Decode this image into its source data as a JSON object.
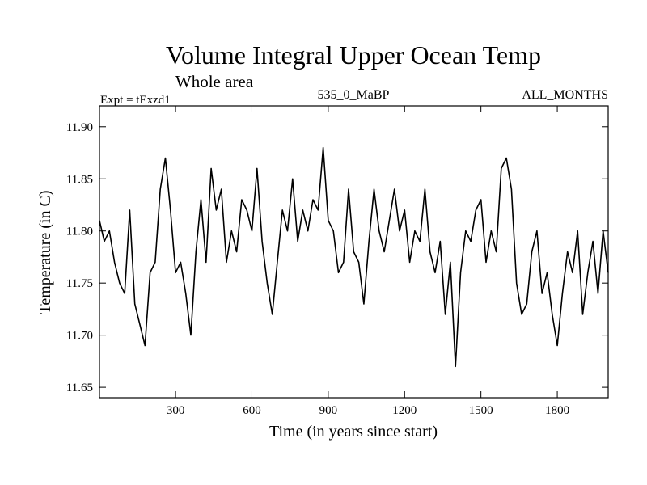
{
  "chart_data": {
    "type": "line",
    "title": "Volume Integral Upper Ocean Temp",
    "subtitle": "Whole area",
    "experiment_label": "Expt = tExzd1",
    "period_label": "535_0_MaBP",
    "months_label": "ALL_MONTHS",
    "xlabel": "Time (in years since start)",
    "ylabel": "Temperature (in C)",
    "xlim": [
      1,
      2000
    ],
    "ylim": [
      11.64,
      11.92
    ],
    "xticks": [
      300,
      600,
      900,
      1200,
      1500,
      1800
    ],
    "xtick_labels": [
      "300",
      "600",
      "900",
      "1200",
      "1500",
      "1800"
    ],
    "yticks": [
      11.65,
      11.7,
      11.75,
      11.8,
      11.85,
      11.9
    ],
    "ytick_labels": [
      "11.65",
      "11.70",
      "11.75",
      "11.80",
      "11.85",
      "11.90"
    ],
    "grid": false,
    "line_color": "#000000",
    "series": [
      {
        "name": "Volume integral upper ocean temperature",
        "x": [
          1,
          20,
          40,
          60,
          80,
          100,
          120,
          140,
          160,
          180,
          200,
          220,
          240,
          260,
          280,
          300,
          320,
          340,
          360,
          380,
          400,
          420,
          440,
          460,
          480,
          500,
          520,
          540,
          560,
          580,
          600,
          620,
          640,
          660,
          680,
          700,
          720,
          740,
          760,
          780,
          800,
          820,
          840,
          860,
          880,
          900,
          920,
          940,
          960,
          980,
          1000,
          1020,
          1040,
          1060,
          1080,
          1100,
          1120,
          1140,
          1160,
          1180,
          1200,
          1220,
          1240,
          1260,
          1280,
          1300,
          1320,
          1340,
          1360,
          1380,
          1400,
          1420,
          1440,
          1460,
          1480,
          1500,
          1520,
          1540,
          1560,
          1580,
          1600,
          1620,
          1640,
          1660,
          1680,
          1700,
          1720,
          1740,
          1760,
          1780,
          1800,
          1820,
          1840,
          1860,
          1880,
          1900,
          1920,
          1940,
          1960,
          1980,
          2000
        ],
        "values": [
          11.81,
          11.79,
          11.8,
          11.77,
          11.75,
          11.74,
          11.82,
          11.73,
          11.71,
          11.69,
          11.76,
          11.77,
          11.84,
          11.87,
          11.82,
          11.76,
          11.77,
          11.74,
          11.7,
          11.78,
          11.83,
          11.77,
          11.86,
          11.82,
          11.84,
          11.77,
          11.8,
          11.78,
          11.83,
          11.82,
          11.8,
          11.86,
          11.79,
          11.75,
          11.72,
          11.77,
          11.82,
          11.8,
          11.85,
          11.79,
          11.82,
          11.8,
          11.83,
          11.82,
          11.88,
          11.81,
          11.8,
          11.76,
          11.77,
          11.84,
          11.78,
          11.77,
          11.73,
          11.79,
          11.84,
          11.8,
          11.78,
          11.81,
          11.84,
          11.8,
          11.82,
          11.77,
          11.8,
          11.79,
          11.84,
          11.78,
          11.76,
          11.79,
          11.72,
          11.77,
          11.67,
          11.76,
          11.8,
          11.79,
          11.82,
          11.83,
          11.77,
          11.8,
          11.78,
          11.86,
          11.87,
          11.84,
          11.75,
          11.72,
          11.73,
          11.78,
          11.8,
          11.74,
          11.76,
          11.72,
          11.69,
          11.74,
          11.78,
          11.76,
          11.8,
          11.72,
          11.76,
          11.79,
          11.74,
          11.8,
          11.76
        ]
      }
    ]
  }
}
